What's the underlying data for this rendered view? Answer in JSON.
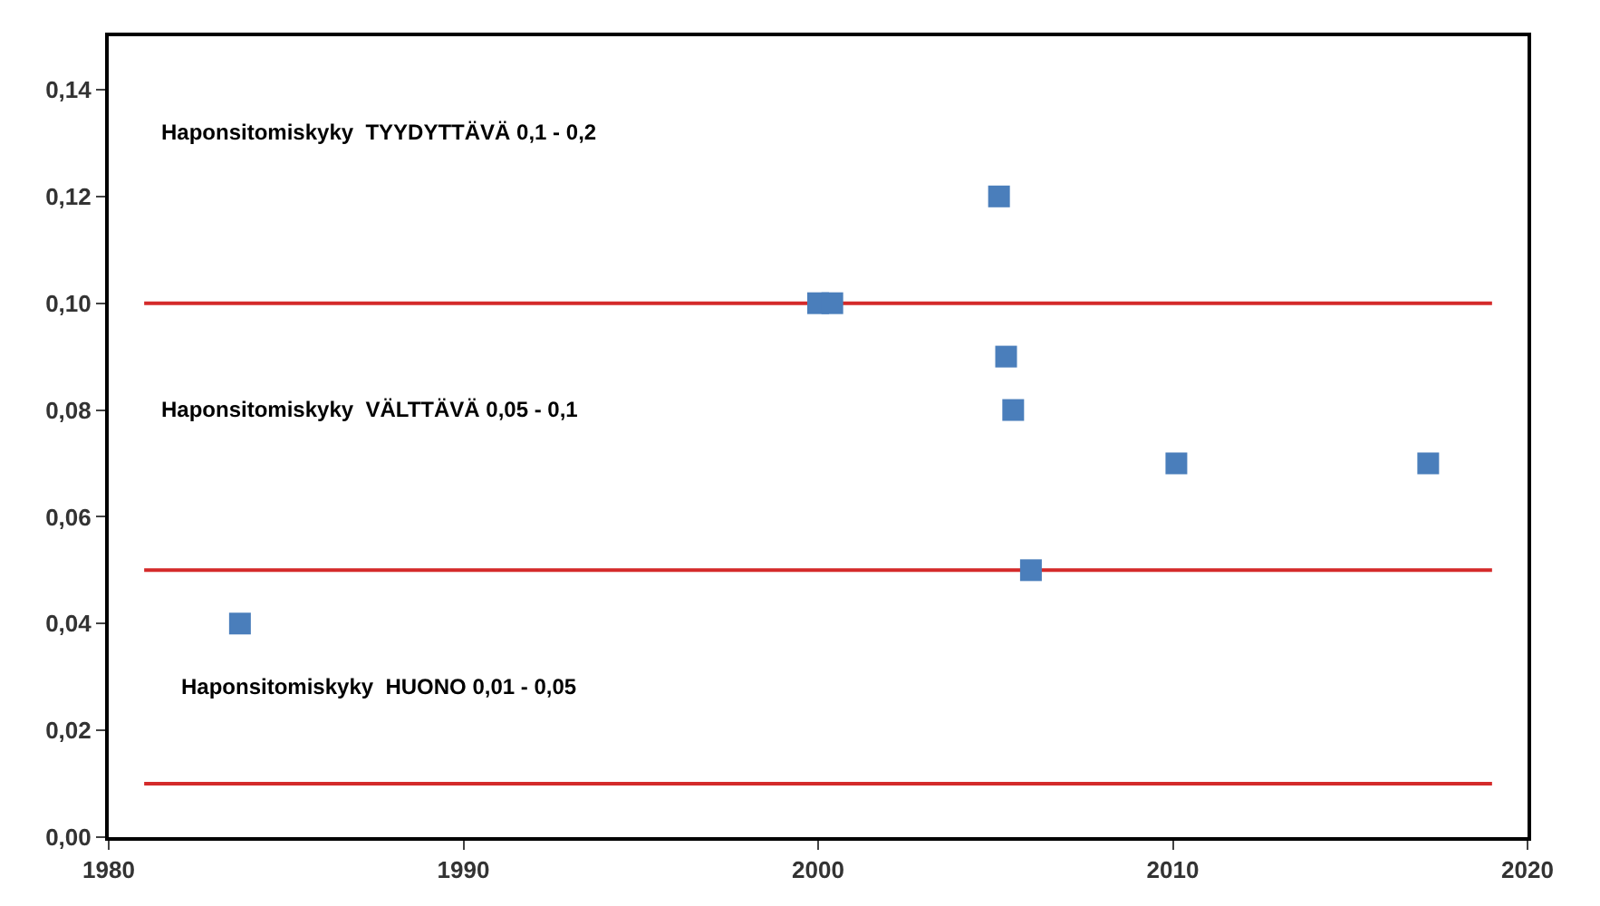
{
  "chart_data": {
    "type": "scatter",
    "marker": "square",
    "grid": false,
    "legend": false,
    "x": [
      1983.7,
      2000.0,
      2000.4,
      2005.1,
      2005.3,
      2005.5,
      2006.0,
      2010.1,
      2017.2
    ],
    "series": [
      {
        "color": "#4a7ebb",
        "values": [
          0.04,
          0.1,
          0.1,
          0.12,
          0.09,
          0.08,
          0.05,
          0.07,
          0.07
        ]
      }
    ],
    "xlim": [
      1980,
      2020
    ],
    "xticks": [
      1980,
      1990,
      2000,
      2010,
      2020
    ],
    "ylim": [
      0,
      0.15
    ],
    "yticks": [
      {
        "value": 0,
        "label": "0,00"
      },
      {
        "value": 0.02,
        "label": "0,02"
      },
      {
        "value": 0.04,
        "label": "0,04"
      },
      {
        "value": 0.06,
        "label": "0,06"
      },
      {
        "value": 0.08,
        "label": "0,08"
      },
      {
        "value": 0.1,
        "label": "0,10"
      },
      {
        "value": 0.12,
        "label": "0,12"
      },
      {
        "value": 0.14,
        "label": "0,14"
      }
    ],
    "ref_lines": [
      {
        "axis": "y",
        "value": 0.1,
        "color": "#d42a2a"
      },
      {
        "axis": "y",
        "value": 0.05,
        "color": "#d42a2a"
      },
      {
        "axis": "y",
        "value": 0.01,
        "color": "#d42a2a"
      }
    ],
    "annotations": [
      "Haponsitomiskyky  TYYDYTTÄVÄ 0,1 - 0,2",
      "Haponsitomiskyky  VÄLTTÄVÄ 0,05 - 0,1",
      "Haponsitomiskyky  HUONO 0,01 - 0,05"
    ]
  }
}
